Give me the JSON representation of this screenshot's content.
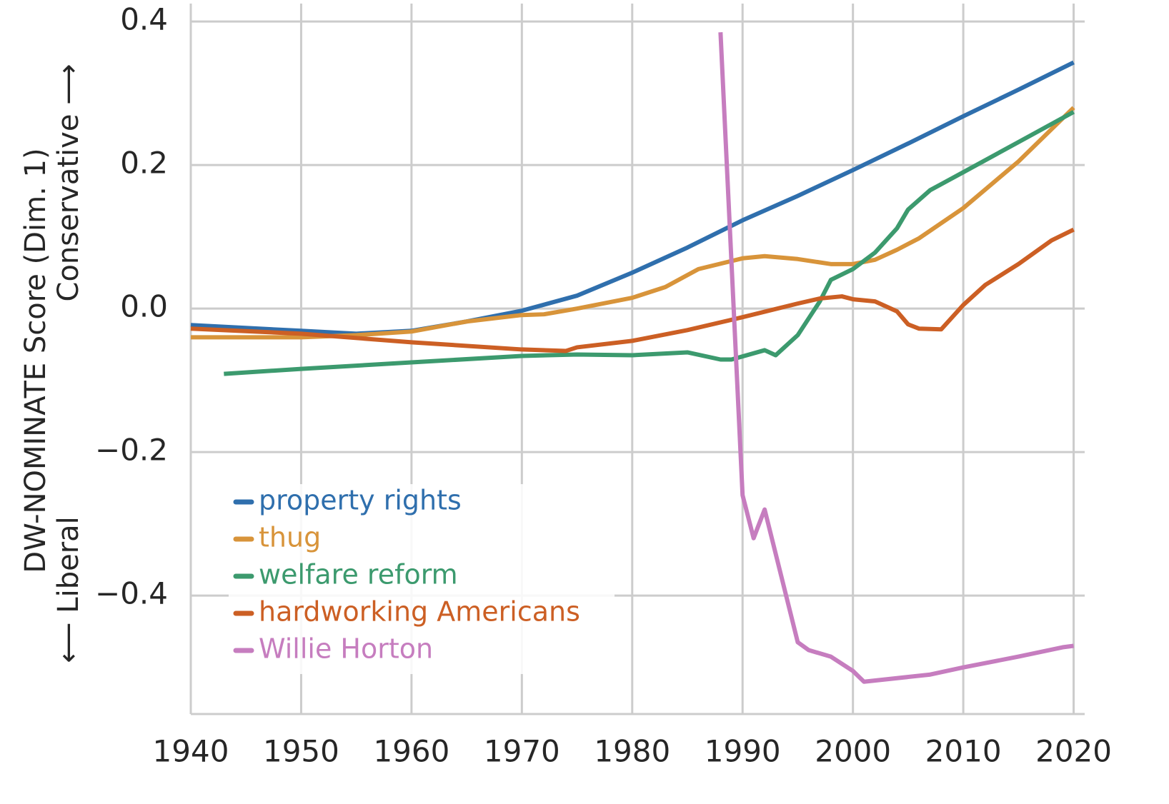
{
  "chart_data": {
    "type": "line",
    "ylabel": "DW-NOMINATE Score (Dim. 1)",
    "ylabel_low": "⟵ Liberal",
    "ylabel_high": "Conservative ⟶",
    "xlim": [
      1940,
      2021
    ],
    "ylim": [
      -0.565,
      0.425
    ],
    "xticks": [
      1940,
      1950,
      1960,
      1970,
      1980,
      1990,
      2000,
      2010,
      2020
    ],
    "yticks": [
      {
        "value": -0.4,
        "label": "−0.4"
      },
      {
        "value": -0.2,
        "label": "−0.2"
      },
      {
        "value": 0,
        "label": "0.0"
      },
      0.2,
      0.4
    ],
    "grid": true,
    "legend": "lower left",
    "series": [
      {
        "name": "property rights",
        "color": "#2f6fad",
        "x": [
          1940,
          1950,
          1955,
          1960,
          1965,
          1970,
          1975,
          1980,
          1985,
          1990,
          1995,
          2000,
          2005,
          2010,
          2015,
          2020
        ],
        "values": [
          -0.023,
          -0.031,
          -0.035,
          -0.031,
          -0.018,
          -0.003,
          0.018,
          0.05,
          0.085,
          0.123,
          0.157,
          0.193,
          0.23,
          0.268,
          0.305,
          0.343
        ]
      },
      {
        "name": "thug",
        "color": "#d8943a",
        "x": [
          1940,
          1950,
          1955,
          1960,
          1965,
          1970,
          1972,
          1975,
          1980,
          1983,
          1986,
          1990,
          1992,
          1995,
          1998,
          2000,
          2002,
          2004,
          2006,
          2010,
          2015,
          2020
        ],
        "values": [
          -0.04,
          -0.04,
          -0.037,
          -0.032,
          -0.018,
          -0.009,
          -0.008,
          0.0,
          0.015,
          0.03,
          0.055,
          0.07,
          0.073,
          0.069,
          0.062,
          0.062,
          0.068,
          0.082,
          0.098,
          0.14,
          0.205,
          0.28
        ]
      },
      {
        "name": "welfare reform",
        "color": "#3c9a6e",
        "x": [
          1943,
          1950,
          1960,
          1970,
          1975,
          1980,
          1985,
          1988,
          1989,
          1992,
          1993,
          1995,
          1997,
          1998,
          2000,
          2002,
          2004,
          2005,
          2007,
          2010,
          2015,
          2020
        ],
        "values": [
          -0.091,
          -0.084,
          -0.075,
          -0.066,
          -0.064,
          -0.065,
          -0.061,
          -0.071,
          -0.071,
          -0.058,
          -0.065,
          -0.037,
          0.01,
          0.04,
          0.055,
          0.078,
          0.112,
          0.138,
          0.165,
          0.19,
          0.232,
          0.274
        ]
      },
      {
        "name": "hardworking Americans",
        "color": "#cc5f24",
        "x": [
          1940,
          1950,
          1960,
          1970,
          1974,
          1975,
          1980,
          1985,
          1990,
          1995,
          1997,
          1999,
          2000,
          2002,
          2004,
          2005,
          2006,
          2008,
          2010,
          2012,
          2015,
          2018,
          2020
        ],
        "values": [
          -0.028,
          -0.035,
          -0.047,
          -0.057,
          -0.059,
          -0.054,
          -0.045,
          -0.03,
          -0.012,
          0.007,
          0.014,
          0.017,
          0.013,
          0.01,
          -0.004,
          -0.022,
          -0.028,
          -0.029,
          0.005,
          0.033,
          0.062,
          0.095,
          0.11
        ]
      },
      {
        "name": "Willie Horton",
        "color": "#c67dbf",
        "x": [
          1988,
          1990,
          1991,
          1992,
          1995,
          1996,
          1998,
          2000,
          2001,
          2007,
          2010,
          2015,
          2019,
          2020
        ],
        "values": [
          0.385,
          -0.26,
          -0.32,
          -0.28,
          -0.465,
          -0.476,
          -0.485,
          -0.505,
          -0.52,
          -0.51,
          -0.5,
          -0.485,
          -0.472,
          -0.47
        ]
      }
    ]
  }
}
